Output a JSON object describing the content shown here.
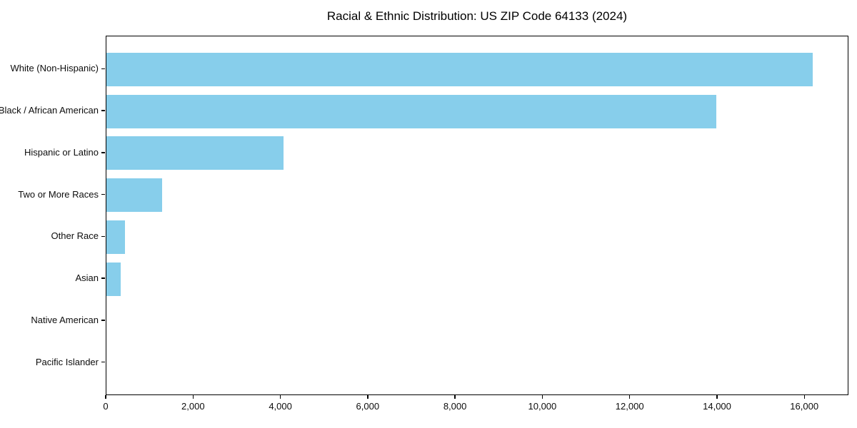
{
  "figure": {
    "title": "Racial & Ethnic Distribution: US ZIP Code 64133 (2024)"
  },
  "chart_data": {
    "type": "bar",
    "orientation": "horizontal",
    "title": "Racial & Ethnic Distribution: US ZIP Code 64133 (2024)",
    "categories": [
      "White (Non-Hispanic)",
      "Black / African American",
      "Hispanic or Latino",
      "Two or More Races",
      "Other Race",
      "Asian",
      "Native American",
      "Pacific Islander"
    ],
    "values": [
      16200,
      13990,
      4060,
      1280,
      425,
      330,
      0,
      0
    ],
    "xlabel": "",
    "ylabel": "",
    "xlim": [
      0,
      17010
    ],
    "x_ticks": [
      0,
      2000,
      4000,
      6000,
      8000,
      10000,
      12000,
      14000,
      16000
    ],
    "x_tick_labels": [
      "0",
      "2,000",
      "4,000",
      "6,000",
      "8,000",
      "10,000",
      "12,000",
      "14,000",
      "16,000"
    ],
    "bar_color": "#87CEEB",
    "axis_color": "#000000",
    "grid": false,
    "legend": null
  }
}
